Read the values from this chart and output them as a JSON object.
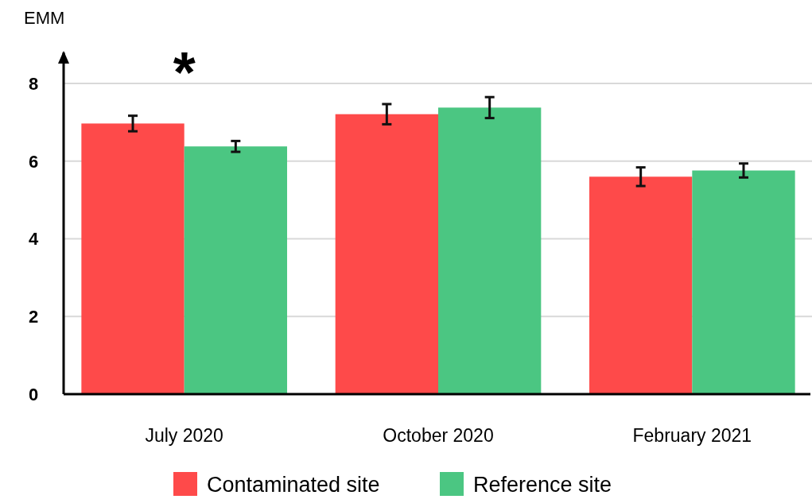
{
  "chart_data": {
    "type": "bar",
    "ylabel": "EMM",
    "categories": [
      "July 2020",
      "October 2020",
      "February 2021"
    ],
    "series": [
      {
        "name": "Contaminated site",
        "color": "#fe4a4a",
        "values": [
          6.97,
          7.21,
          5.6
        ],
        "errors": [
          0.2,
          0.26,
          0.24
        ]
      },
      {
        "name": "Reference site",
        "color": "#4bc682",
        "values": [
          6.38,
          7.38,
          5.76
        ],
        "errors": [
          0.14,
          0.27,
          0.18
        ]
      }
    ],
    "ylim": [
      0,
      8.8
    ],
    "yticks": [
      0,
      2,
      4,
      6,
      8
    ],
    "grid": "y",
    "legend": "bottom",
    "annotations": [
      "*"
    ]
  }
}
